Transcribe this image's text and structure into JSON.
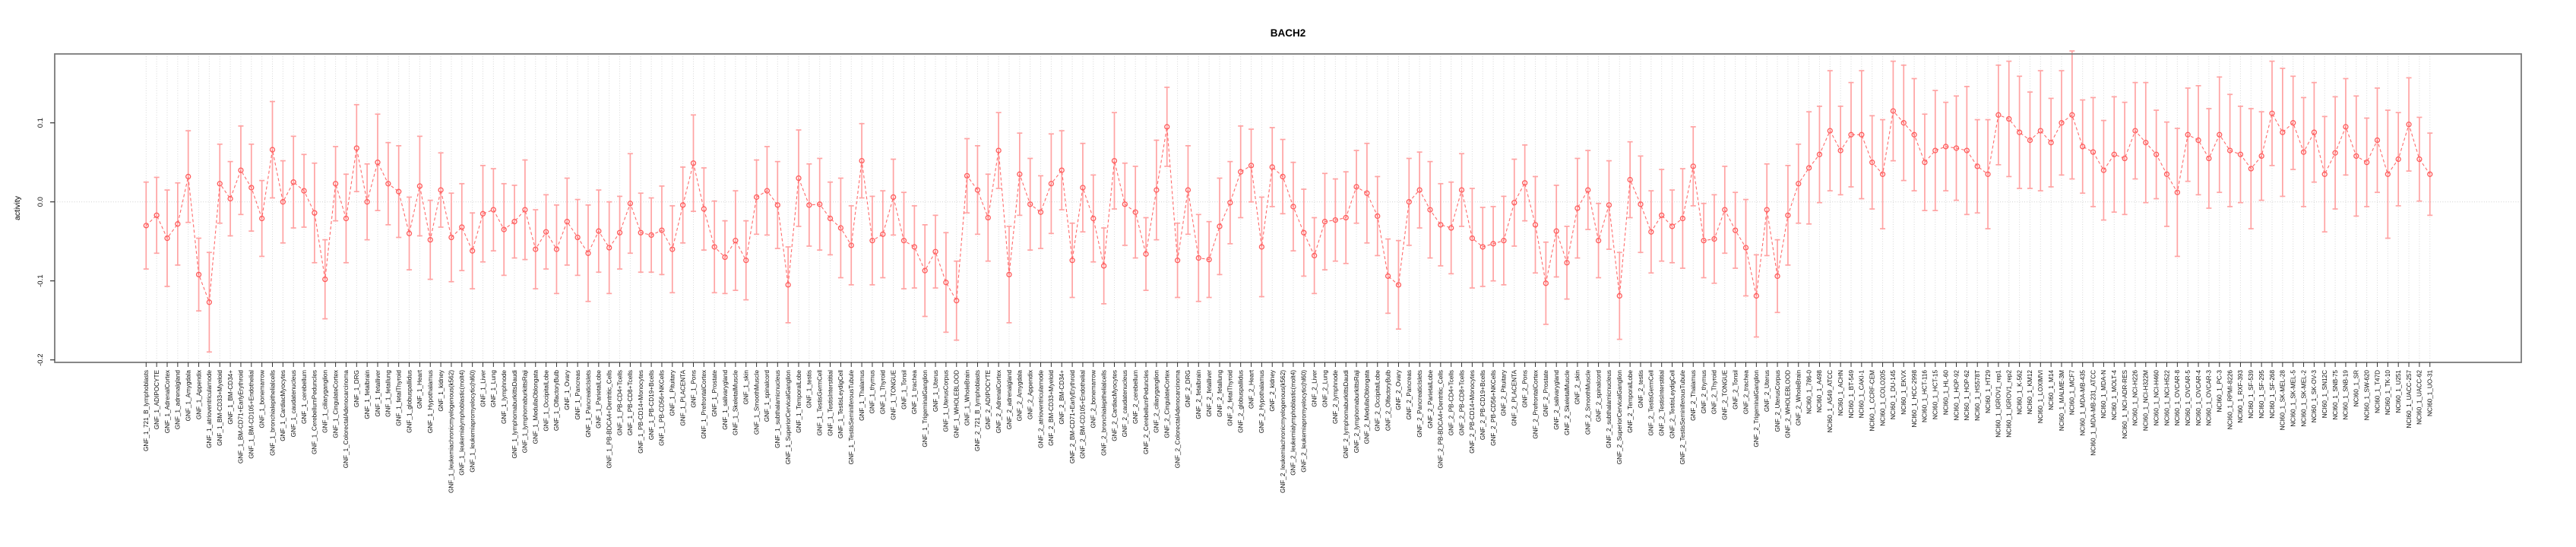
{
  "chart_data": {
    "type": "line",
    "title": "BACH2",
    "ylabel": "activity",
    "xlabel": "",
    "ylim": [
      -0.203,
      0.187
    ],
    "yticks": [
      0.1,
      0.0,
      -0.1,
      -0.2
    ],
    "ytick_labels": [
      "0.1",
      "0.0",
      "-0.1",
      "-0.2"
    ],
    "legend_position": "none",
    "grid": "dotted vertical line per category; dotted horizontal line at 0",
    "marker": "open-circle",
    "line_style": "dashed",
    "point_color": "#ff5c5c",
    "line_color": "#ff6b6b",
    "errorbar_color": "#ffa3a3",
    "gridline_color": "#d8d8d8",
    "box_color": "#7a7a7a",
    "categories": [
      "GNF_1_721_B_lymphoblasts",
      "GNF_1_ADIPOCYTE",
      "GNF_1_AdrenalCortex",
      "GNF_1_adrenalgland",
      "GNF_1_Amygdala",
      "GNF_1_Appendix",
      "GNF_1_atrioventricularnode",
      "GNF_1_BM-CD33+Myeloid",
      "GNF_1_BM-CD34+",
      "GNF_1_BM-CD71+EarlyErythroid",
      "GNF_1_BM-CD105+Endothelial",
      "GNF_1_bonemarrow",
      "GNF_1_bronchialepithelialcells",
      "GNF_1_CardiacMyocytes",
      "GNF_1_caudatenucleus",
      "GNF_1_cerebellum",
      "GNF_1_CerebellumPeduncles",
      "GNF_1_ciliaryganglion",
      "GNF_1_CingulateCortex",
      "GNF_1_ColorectalAdenocarcinoma",
      "GNF_1_DRG",
      "GNF_1_fetalbrain",
      "GNF_1_fetalliver",
      "GNF_1_fetallung",
      "GNF_1_fetalThyroid",
      "GNF_1_globuspallidus",
      "GNF_1_Heart",
      "GNF_1_Hypothalamus",
      "GNF_1_kidney",
      "GNF_1_leukemiachronicmyelogenous(k562)",
      "GNF_1_leukemialymphoblastic(molt4)",
      "GNF_1_leukemiapromyelocytic(hl60)",
      "GNF_1_Liver",
      "GNF_1_Lung",
      "GNF_1_lymphnode",
      "GNF_1_lymphomaburkittsDaudi",
      "GNF_1_lymphomaburkittsRaji",
      "GNF_1_MedullaOblongata",
      "GNF_1_OccipitalLobe",
      "GNF_1_OlfactoryBulb",
      "GNF_1_Ovary",
      "GNF_1_Pancreas",
      "GNF_1_PancreaticIslets",
      "GNF_1_ParietalLobe",
      "GNF_1_PB-BDCA4+Dentritic_Cells",
      "GNF_1_PB-CD4+Tcells",
      "GNF_1_PB-CD8+Tcells",
      "GNF_1_PB-CD14+Monocytes",
      "GNF_1_PB-CD19+Bcells",
      "GNF_1_PB-CD56+NKCells",
      "GNF_1_Pituitary",
      "GNF_1_PLACENTA",
      "GNF_1_Pons",
      "GNF_1_PrefrontalCortex",
      "GNF_1_Prostate",
      "GNF_1_salivarygland",
      "GNF_1_SkeletalMuscle",
      "GNF_1_skin",
      "GNF_1_SmoothMuscle",
      "GNF_1_spinalcord",
      "GNF_1_subthalamicnucleus",
      "GNF_1_SuperiorCervicalGanglion",
      "GNF_1_TemporalLobe",
      "GNF_1_testis",
      "GNF_1_TestisGermCell",
      "GNF_1_TestisInterstitial",
      "GNF_1_TestisLeydigCell",
      "GNF_1_TestisSeminiferousTubule",
      "GNF_1_Thalamus",
      "GNF_1_thymus",
      "GNF_1_Thyroid",
      "GNF_1_TONGUE",
      "GNF_1_Tonsil",
      "GNF_1_trachea",
      "GNF_1_TrigeminalGanglion",
      "GNF_1_Uterus",
      "GNF_1_UterusCorpus",
      "GNF_1_WHOLEBLOOD",
      "GNF_1_WholeBrain",
      "GNF_2_721_B_lymphoblasts",
      "GNF_2_ADIPOCYTE",
      "GNF_2_AdrenalCortex",
      "GNF_2_adrenalgland",
      "GNF_2_Amygdala",
      "GNF_2_Appendix",
      "GNF_2_atrioventricularnode",
      "GNF_2_BM-CD33+Myeloid",
      "GNF_2_BM-CD34+",
      "GNF_2_BM-CD71+EarlyErythroid",
      "GNF_2_BM-CD105+Endothelial",
      "GNF_2_bonemarrow",
      "GNF_2_bronchialepithelialcells",
      "GNF_2_CardiacMyocytes",
      "GNF_2_caudatenucleus",
      "GNF_2_cerebellum",
      "GNF_2_CerebellumPeduncles",
      "GNF_2_ciliaryganglion",
      "GNF_2_CingulateCortex",
      "GNF_2_ColorectalAdenocarcinoma",
      "GNF_2_DRG",
      "GNF_2_fetalbrain",
      "GNF_2_fetalliver",
      "GNF_2_fetallung",
      "GNF_2_fetalThyroid",
      "GNF_2_globuspallidus",
      "GNF_2_Heart",
      "GNF_2_Hypothalamus",
      "GNF_2_kidney",
      "GNF_2_leukemiachronicmyelogenous(k562)",
      "GNF_2_leukemialymphoblastic(molt4)",
      "GNF_2_leukemiapromyelocytic(hl60)",
      "GNF_2_Liver",
      "GNF_2_Lung",
      "GNF_2_lymphnode",
      "GNF_2_lymphomaburkittsDaudi",
      "GNF_2_lymphomaburkittsRaji",
      "GNF_2_MedullaOblongata",
      "GNF_2_OccipitalLobe",
      "GNF_2_OlfactoryBulb",
      "GNF_2_Ovary",
      "GNF_2_Pancreas",
      "GNF_2_PancreaticIslets",
      "GNF_2_ParietalLobe",
      "GNF_2_PB-BDCA4+Dentritic_Cells",
      "GNF_2_PB-CD4+Tcells",
      "GNF_2_PB-CD8+Tcells",
      "GNF_2_PB-CD14+Monocytes",
      "GNF_2_PB-CD19+Bcells",
      "GNF_2_PB-CD56+NKCells",
      "GNF_2_Pituitary",
      "GNF_2_PLACENTA",
      "GNF_2_Pons",
      "GNF_2_PrefrontalCortex",
      "GNF_2_Prostate",
      "GNF_2_salivarygland",
      "GNF_2_SkeletalMuscle",
      "GNF_2_skin",
      "GNF_2_SmoothMuscle",
      "GNF_2_spinalcord",
      "GNF_2_subthalamicnucleus",
      "GNF_2_SuperiorCervicalGanglion",
      "GNF_2_TemporalLobe",
      "GNF_2_testis",
      "GNF_2_TestisGermCell",
      "GNF_2_TestisInterstitial",
      "GNF_2_TestisLeydigCell",
      "GNF_2_TestisSeminiferousTubule",
      "GNF_2_Thalamus",
      "GNF_2_thymus",
      "GNF_2_Thyroid",
      "GNF_2_TONGUE",
      "GNF_2_Tonsil",
      "GNF_2_trachea",
      "GNF_2_TrigeminalGanglion",
      "GNF_2_Uterus",
      "GNF_2_UterusCorpus",
      "GNF_2_WHOLEBLOOD",
      "GNF_2_WholeBrain",
      "NCI60_1_786-0",
      "NCI60_1_A498",
      "NCI60_1_A549_ATCC",
      "NCI60_1_ACHN",
      "NCI60_1_BT-549",
      "NCI60_1_CAKI-1",
      "NCI60_1_CCRF-CEM",
      "NCI60_1_COLO205",
      "NCI60_1_DU-145",
      "NCI60_1_EKVX",
      "NCI60_1_HCC-2998",
      "NCI60_1_HCT-116",
      "NCI60_1_HCT-15",
      "NCI60_1_HL-60",
      "NCI60_1_HOP-92",
      "NCI60_1_HOP-62",
      "NCI60_1_HS578T",
      "NCI60_1_HT29",
      "NCI60_1_IGROV1_rep1",
      "NCI60_1_IGROV1_rep2",
      "NCI60_1_K-562",
      "NCI60_1_KM12",
      "NCI60_1_LOXIMVI",
      "NCI60_1_M14",
      "NCI60_1_MALME-3M",
      "NCI60_1_MCF7",
      "NCI60_1_MDA-MB-435",
      "NCI60_1_MDA-MB-231_ATCC",
      "NCI60_1_MDA-N",
      "NCI60_1_MOLT-4",
      "NCI60_1_NCI-ADR-RES",
      "NCI60_1_NCI-H226",
      "NCI60_1_NCI-H322M",
      "NCI60_1_NCI-H460",
      "NCI60_1_NCI-H522",
      "NCI60_1_OVCAR-8",
      "NCI60_1_OVCAR-5",
      "NCI60_1_OVCAR-4",
      "NCI60_1_OVCAR-3",
      "NCI60_1_PC-3",
      "NCI60_1_RPMI-8226",
      "NCI60_1_RXF-393",
      "NCI60_1_SF-539",
      "NCI60_1_SF-295",
      "NCI60_1_SF-268",
      "NCI60_1_SK-MEL-28",
      "NCI60_1_SK-MEL-5",
      "NCI60_1_SK-MEL-2",
      "NCI60_1_SK-OV-3",
      "NCI60_1_SN12C",
      "NCI60_1_SNB-75",
      "NCI60_1_SNB-19",
      "NCI60_1_SR",
      "NCI60_1_SW-620",
      "NCI60_1_T47D",
      "NCI60_1_TK-10",
      "NCI60_1_U251",
      "NCI60_1_UACC-257",
      "NCI60_1_UACC-62",
      "NCI60_1_UO-31"
    ],
    "values": [
      -0.03,
      -0.017,
      -0.046,
      -0.028,
      0.032,
      -0.092,
      -0.127,
      0.023,
      0.004,
      0.04,
      0.018,
      -0.021,
      0.066,
      0.0,
      0.025,
      0.014,
      -0.014,
      -0.098,
      0.023,
      -0.021,
      0.068,
      0.0,
      0.05,
      0.023,
      0.013,
      -0.04,
      0.02,
      -0.048,
      0.015,
      -0.045,
      -0.032,
      -0.062,
      -0.015,
      -0.01,
      -0.035,
      -0.025,
      -0.01,
      -0.06,
      -0.038,
      -0.06,
      -0.025,
      -0.045,
      -0.065,
      -0.037,
      -0.058,
      -0.039,
      -0.002,
      -0.039,
      -0.042,
      -0.036,
      -0.06,
      -0.004,
      0.049,
      -0.009,
      -0.057,
      -0.07,
      -0.049,
      -0.074,
      0.006,
      0.014,
      -0.004,
      -0.105,
      0.03,
      -0.004,
      -0.003,
      -0.021,
      -0.033,
      -0.055,
      0.052,
      -0.049,
      -0.041,
      0.006,
      -0.049,
      -0.057,
      -0.087,
      -0.063,
      -0.102,
      -0.125,
      0.033,
      0.015,
      -0.02,
      0.065,
      -0.092,
      0.035,
      -0.003,
      -0.013,
      0.023,
      0.04,
      -0.074,
      0.018,
      -0.021,
      -0.081,
      0.052,
      -0.003,
      -0.013,
      -0.066,
      0.015,
      0.095,
      -0.074,
      0.015,
      -0.071,
      -0.073,
      -0.031,
      -0.001,
      0.038,
      0.046,
      -0.057,
      0.044,
      0.032,
      -0.006,
      -0.039,
      -0.068,
      -0.025,
      -0.023,
      -0.02,
      0.019,
      0.011,
      -0.018,
      -0.094,
      -0.105,
      0.0,
      0.015,
      -0.01,
      -0.029,
      -0.033,
      0.015,
      -0.046,
      -0.057,
      -0.053,
      -0.049,
      -0.001,
      0.024,
      -0.029,
      -0.103,
      -0.037,
      -0.077,
      -0.008,
      0.015,
      -0.049,
      -0.004,
      -0.119,
      0.028,
      -0.003,
      -0.038,
      -0.017,
      -0.031,
      -0.021,
      0.045,
      -0.049,
      -0.047,
      -0.01,
      -0.036,
      -0.058,
      -0.119,
      -0.01,
      -0.094,
      -0.017,
      0.023,
      0.043,
      0.06,
      0.09,
      0.065,
      0.085,
      0.085,
      0.05,
      0.035,
      0.115,
      0.1,
      0.085,
      0.05,
      0.065,
      0.07,
      0.068,
      0.065,
      0.045,
      0.035,
      0.11,
      0.105,
      0.088,
      0.078,
      0.09,
      0.075,
      0.1,
      0.11,
      0.07,
      0.063,
      0.04,
      0.06,
      0.055,
      0.09,
      0.075,
      0.06,
      0.035,
      0.012,
      0.085,
      0.078,
      0.055,
      0.085,
      0.065,
      0.06,
      0.042,
      0.058,
      0.112,
      0.088,
      0.1,
      0.063,
      0.088,
      0.035,
      0.062,
      0.095,
      0.058,
      0.05,
      0.078,
      0.035,
      0.054,
      0.098,
      0.054,
      0.035
    ],
    "errors": [
      0.055,
      0.048,
      0.061,
      0.052,
      0.058,
      0.046,
      0.063,
      0.05,
      0.047,
      0.056,
      0.055,
      0.048,
      0.061,
      0.052,
      0.058,
      0.046,
      0.063,
      0.05,
      0.047,
      0.056,
      0.055,
      0.048,
      0.061,
      0.052,
      0.058,
      0.046,
      0.063,
      0.05,
      0.047,
      0.056,
      0.055,
      0.048,
      0.061,
      0.052,
      0.058,
      0.046,
      0.063,
      0.05,
      0.047,
      0.056,
      0.055,
      0.048,
      0.061,
      0.052,
      0.058,
      0.046,
      0.063,
      0.05,
      0.047,
      0.056,
      0.055,
      0.048,
      0.061,
      0.052,
      0.058,
      0.046,
      0.063,
      0.05,
      0.047,
      0.056,
      0.055,
      0.048,
      0.061,
      0.052,
      0.058,
      0.046,
      0.063,
      0.05,
      0.047,
      0.056,
      0.055,
      0.048,
      0.061,
      0.052,
      0.058,
      0.046,
      0.063,
      0.05,
      0.047,
      0.056,
      0.055,
      0.048,
      0.061,
      0.052,
      0.058,
      0.046,
      0.063,
      0.05,
      0.047,
      0.056,
      0.055,
      0.048,
      0.061,
      0.052,
      0.058,
      0.046,
      0.063,
      0.05,
      0.047,
      0.056,
      0.055,
      0.048,
      0.061,
      0.052,
      0.058,
      0.046,
      0.063,
      0.05,
      0.047,
      0.056,
      0.055,
      0.048,
      0.061,
      0.052,
      0.058,
      0.046,
      0.063,
      0.05,
      0.047,
      0.056,
      0.055,
      0.048,
      0.061,
      0.052,
      0.058,
      0.046,
      0.063,
      0.05,
      0.047,
      0.056,
      0.055,
      0.048,
      0.061,
      0.052,
      0.058,
      0.046,
      0.063,
      0.05,
      0.047,
      0.056,
      0.055,
      0.048,
      0.061,
      0.052,
      0.058,
      0.046,
      0.063,
      0.05,
      0.047,
      0.056,
      0.055,
      0.048,
      0.061,
      0.052,
      0.058,
      0.046,
      0.063,
      0.05,
      0.071,
      0.061,
      0.076,
      0.056,
      0.066,
      0.081,
      0.059,
      0.069,
      0.063,
      0.073,
      0.071,
      0.061,
      0.076,
      0.056,
      0.066,
      0.081,
      0.059,
      0.069,
      0.063,
      0.073,
      0.071,
      0.061,
      0.076,
      0.056,
      0.066,
      0.081,
      0.059,
      0.069,
      0.063,
      0.073,
      0.071,
      0.061,
      0.076,
      0.056,
      0.066,
      0.081,
      0.059,
      0.069,
      0.063,
      0.073,
      0.071,
      0.061,
      0.076,
      0.056,
      0.066,
      0.081,
      0.059,
      0.069,
      0.063,
      0.073,
      0.071,
      0.061,
      0.076,
      0.056,
      0.066,
      0.081,
      0.059,
      0.059,
      0.053,
      0.052
    ]
  }
}
